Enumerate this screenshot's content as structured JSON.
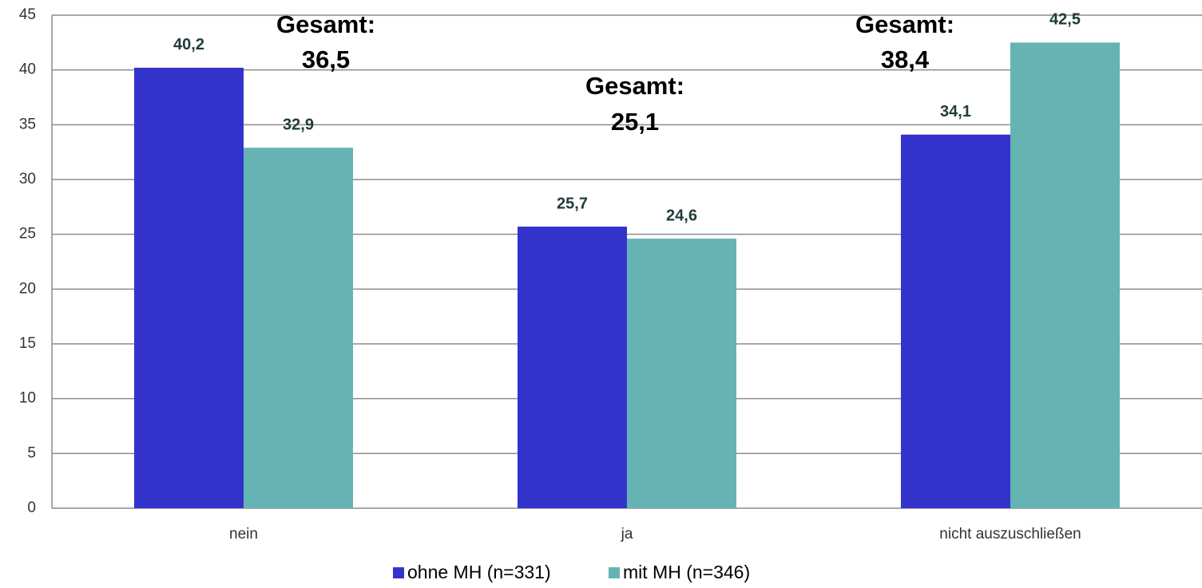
{
  "chart_data": {
    "type": "bar",
    "categories": [
      "nein",
      "ja",
      "nicht auszuschließen"
    ],
    "series": [
      {
        "name": "ohne MH (n=331)",
        "color": "#3333cc",
        "values": [
          40.2,
          25.7,
          34.1
        ],
        "value_labels": [
          "40,2",
          "25,7",
          "34,1"
        ]
      },
      {
        "name": "mit MH (n=346)",
        "color": "#66b3b3",
        "values": [
          32.9,
          24.6,
          42.5
        ],
        "value_labels": [
          "32,9",
          "24,6",
          "42,5"
        ]
      }
    ],
    "annotation_text": "Gesamt:",
    "totals": [
      36.5,
      25.1,
      38.4
    ],
    "total_labels": [
      "36,5",
      "25,1",
      "38,4"
    ],
    "ylim": [
      0,
      45
    ],
    "yticks": [
      0,
      5,
      10,
      15,
      20,
      25,
      30,
      35,
      40,
      45
    ],
    "grid": true,
    "legend": "bottom"
  }
}
